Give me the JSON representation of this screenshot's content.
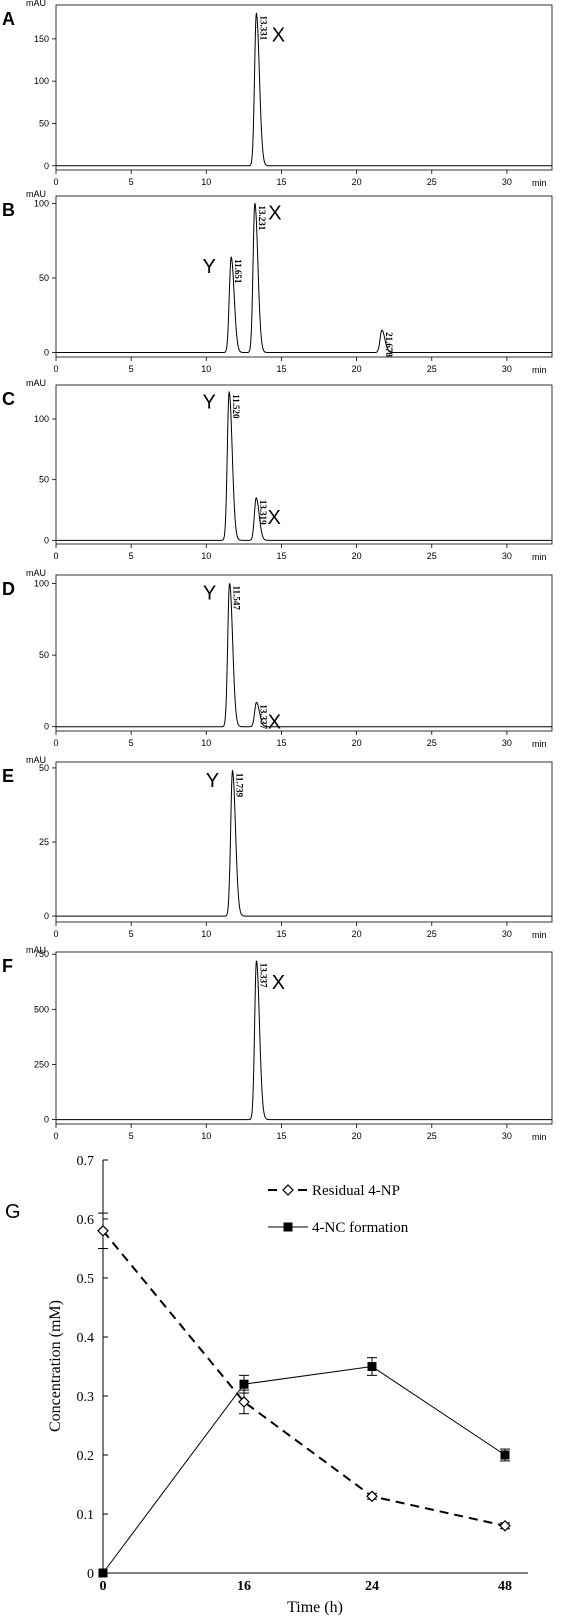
{
  "chart_data": [
    {
      "type": "line",
      "panel": "A",
      "yunit": "mAU",
      "xunit": "min",
      "xlim": [
        0,
        33
      ],
      "ylim": [
        -5,
        190
      ],
      "xticks": [
        0,
        5,
        10,
        15,
        20,
        25,
        30
      ],
      "yticks": [
        0,
        50,
        100,
        150
      ],
      "baseline": 0,
      "peaks": [
        {
          "rt": 13.331,
          "height": 180,
          "label": "X",
          "rt_label": "13.331"
        }
      ]
    },
    {
      "type": "line",
      "panel": "B",
      "yunit": "mAU",
      "xunit": "min",
      "xlim": [
        0,
        33
      ],
      "ylim": [
        -3,
        105
      ],
      "xticks": [
        0,
        5,
        10,
        15,
        20,
        25,
        30
      ],
      "yticks": [
        0,
        50,
        100
      ],
      "baseline": 0,
      "peaks": [
        {
          "rt": 11.651,
          "height": 64,
          "label": "Y",
          "rt_label": "11.651"
        },
        {
          "rt": 13.231,
          "height": 100,
          "label": "X",
          "rt_label": "13.231"
        },
        {
          "rt": 21.678,
          "height": 15,
          "label": "",
          "rt_label": "21.678"
        }
      ]
    },
    {
      "type": "line",
      "panel": "C",
      "yunit": "mAU",
      "xunit": "min",
      "xlim": [
        0,
        33
      ],
      "ylim": [
        -3,
        128
      ],
      "xticks": [
        0,
        5,
        10,
        15,
        20,
        25,
        30
      ],
      "yticks": [
        0,
        50,
        100
      ],
      "baseline": 0,
      "peaks": [
        {
          "rt": 11.52,
          "height": 122,
          "label": "Y",
          "rt_label": "11.520"
        },
        {
          "rt": 13.319,
          "height": 35,
          "label": "X",
          "rt_label": "13.319"
        }
      ]
    },
    {
      "type": "line",
      "panel": "D",
      "yunit": "mAU",
      "xunit": "min",
      "xlim": [
        0,
        33
      ],
      "ylim": [
        -3,
        106
      ],
      "xticks": [
        0,
        5,
        10,
        15,
        20,
        25,
        30
      ],
      "yticks": [
        0,
        50,
        100
      ],
      "baseline": 0,
      "peaks": [
        {
          "rt": 11.547,
          "height": 100,
          "label": "Y",
          "rt_label": "11.547"
        },
        {
          "rt": 13.337,
          "height": 17,
          "label": "X",
          "rt_label": "13.337"
        }
      ]
    },
    {
      "type": "line",
      "panel": "E",
      "yunit": "mAU",
      "xunit": "min",
      "xlim": [
        0,
        33
      ],
      "ylim": [
        -2,
        52
      ],
      "xticks": [
        0,
        5,
        10,
        15,
        20,
        25,
        30
      ],
      "yticks": [
        0,
        25,
        50
      ],
      "baseline": 0,
      "peaks": [
        {
          "rt": 11.739,
          "height": 49,
          "label": "Y",
          "rt_label": "11.739"
        }
      ]
    },
    {
      "type": "line",
      "panel": "F",
      "yunit": "mAU",
      "xunit": "min",
      "xlim": [
        0,
        33
      ],
      "ylim": [
        -20,
        760
      ],
      "xticks": [
        0,
        5,
        10,
        15,
        20,
        25,
        30
      ],
      "yticks": [
        0,
        250,
        500,
        750
      ],
      "baseline": 0,
      "peaks": [
        {
          "rt": 13.337,
          "height": 720,
          "label": "X",
          "rt_label": "13.337"
        }
      ]
    },
    {
      "type": "line",
      "panel": "G",
      "xlabel": "Time (h)",
      "ylabel": "Concentration (mM)",
      "categories": [
        "0",
        "16",
        "24",
        "48"
      ],
      "ylim": [
        0,
        0.7
      ],
      "yticks": [
        "0",
        "0.1",
        "0.2",
        "0.3",
        "0.4",
        "0.5",
        "0.6",
        "0.7"
      ],
      "legend_position": "top-right",
      "series": [
        {
          "name": "Residual 4-NP",
          "values": [
            0.58,
            0.29,
            0.13,
            0.08
          ],
          "errors": [
            0.03,
            0.02,
            0.005,
            0.005
          ],
          "style": "dashed",
          "marker": "open-diamond"
        },
        {
          "name": "4-NC formation",
          "values": [
            0.0,
            0.32,
            0.35,
            0.2
          ],
          "errors": [
            0.0,
            0.015,
            0.015,
            0.01
          ],
          "style": "solid",
          "marker": "filled-square"
        }
      ]
    }
  ]
}
